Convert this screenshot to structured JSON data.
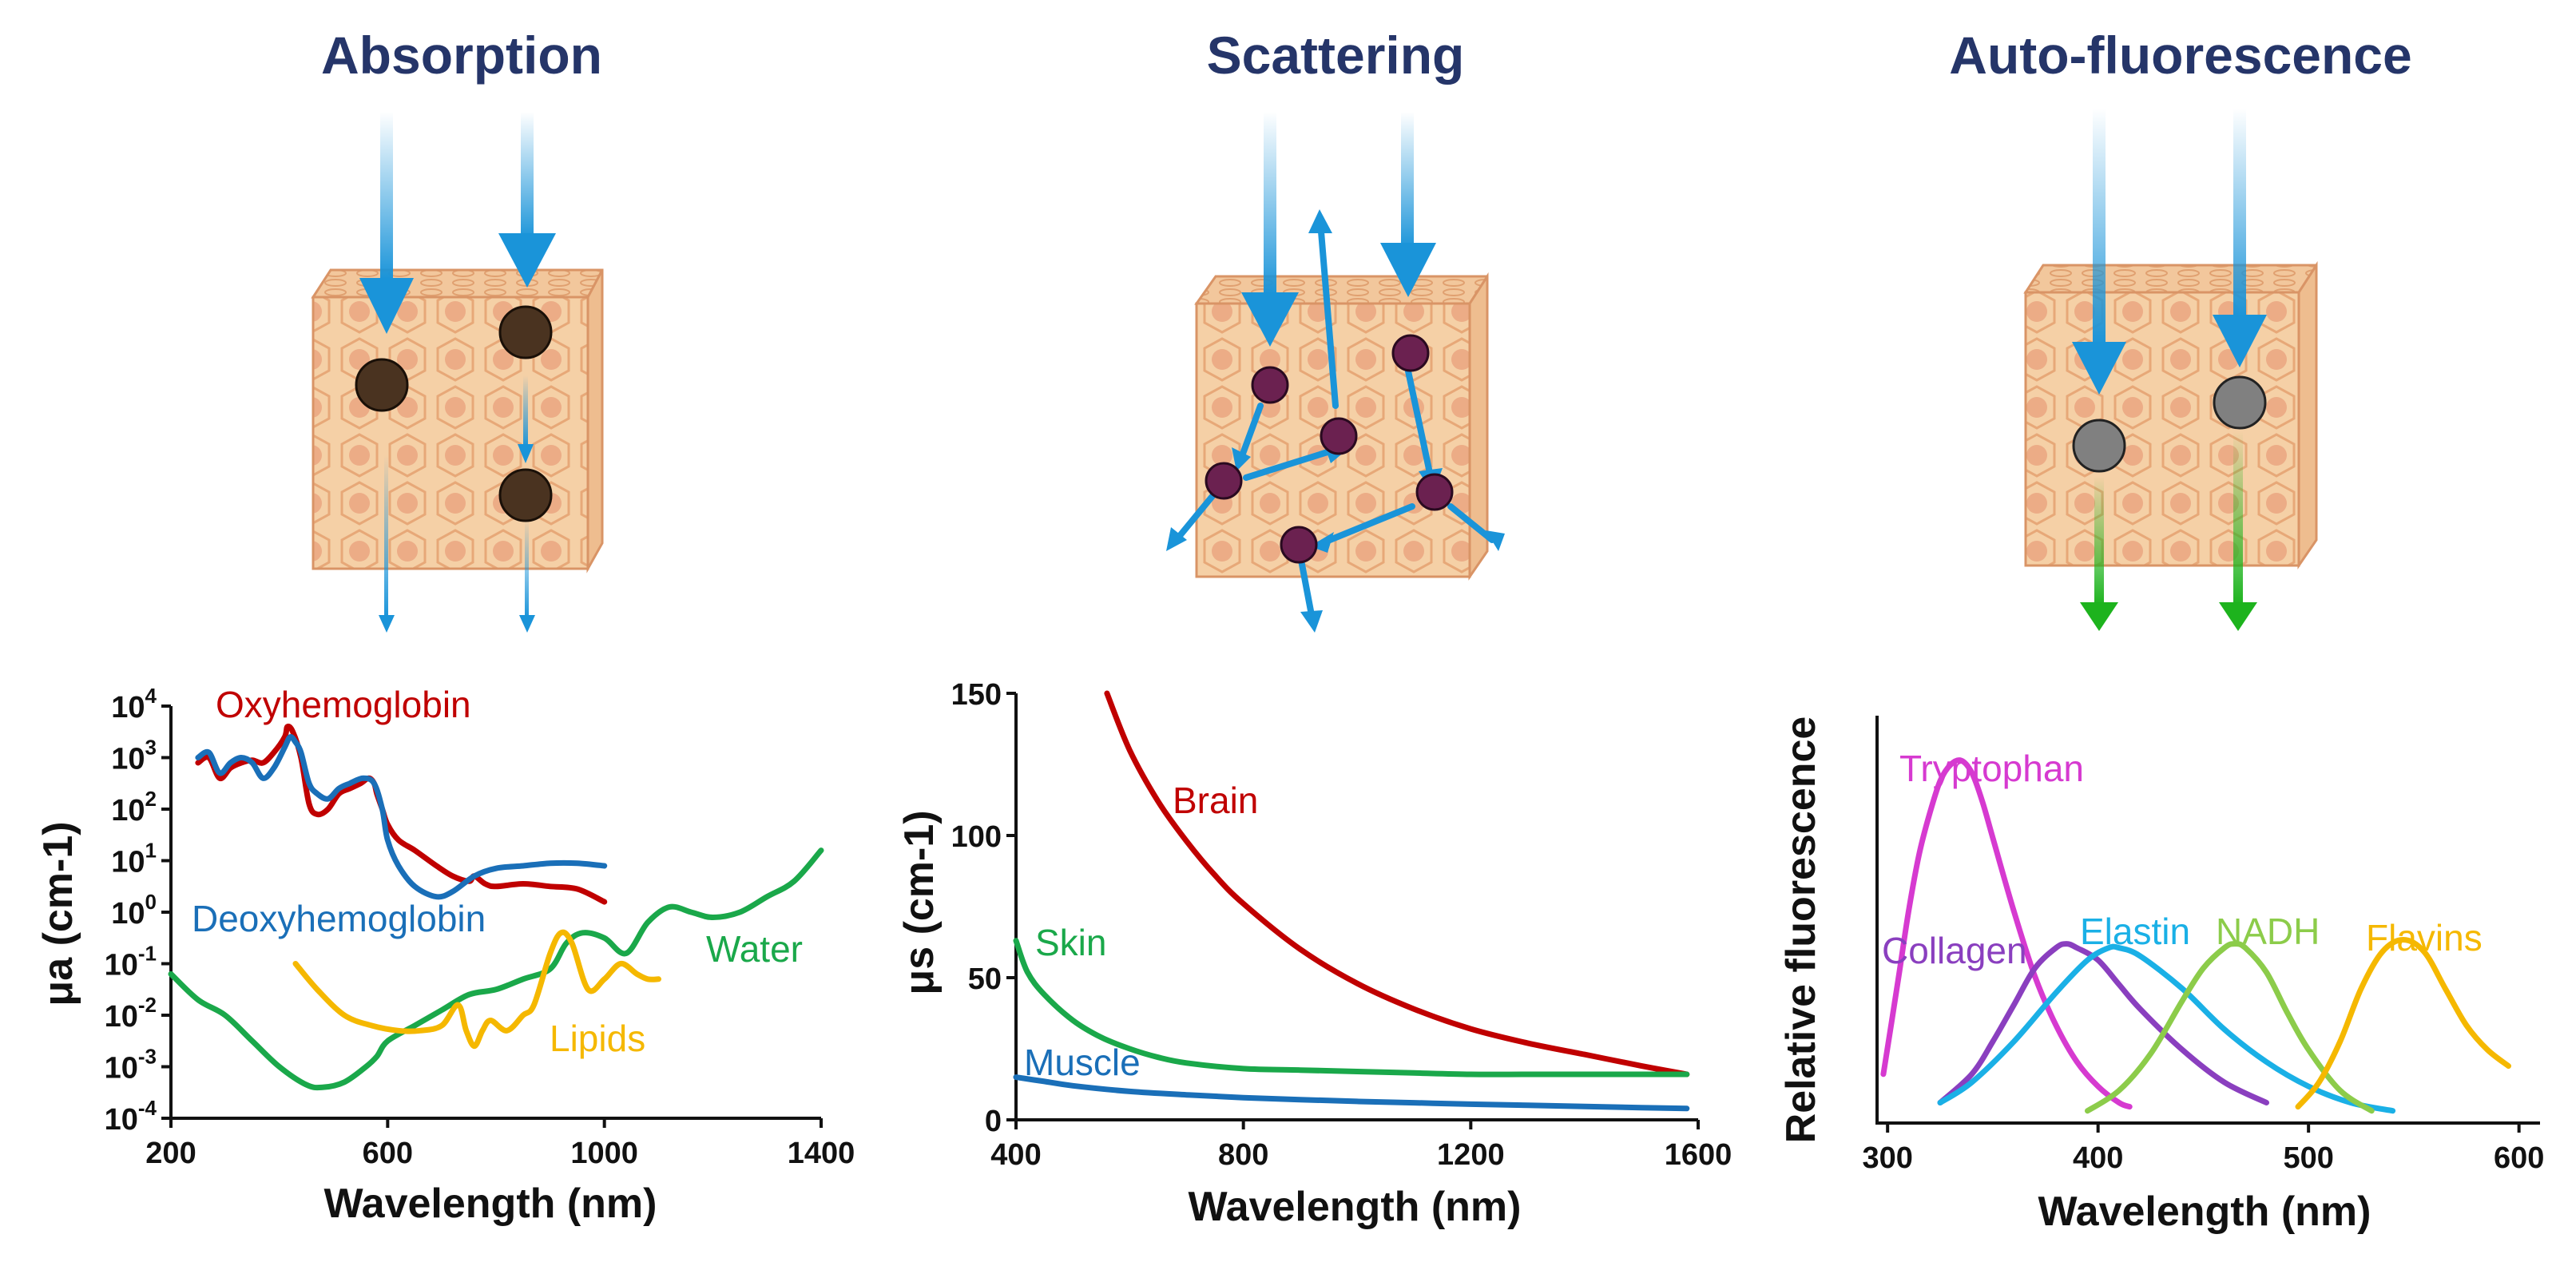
{
  "panels": {
    "absorption": {
      "title": "Absorption"
    },
    "scattering": {
      "title": "Scattering"
    },
    "autofluorescence": {
      "title": "Auto-fluorescence"
    }
  },
  "colors": {
    "title": "#253569",
    "arrow": "#1a94d9",
    "green_arrow": "#1db31d",
    "tissue_fill": "#f5d0a6",
    "tissue_line": "#d99466",
    "absorber": "#4a3320",
    "scatterer": "#6b2150",
    "fluorophore": "#808080"
  },
  "chart_data": [
    {
      "type": "line",
      "xlabel": "Wavelength (nm)",
      "ylabel": "μa (cm-1)",
      "xlim": [
        200,
        1400
      ],
      "xticks": [
        "200",
        "600",
        "1000",
        "1400"
      ],
      "yscale": "log",
      "ylim": [
        -4,
        4
      ],
      "ytick_base": "10",
      "ytick_exponents": [
        "4",
        "3",
        "2",
        "1",
        "0",
        "-1",
        "-2",
        "-3",
        "-4"
      ],
      "series": [
        {
          "name": "Oxyhemoglobin",
          "color": "#c00000",
          "x": [
            250,
            270,
            290,
            310,
            330,
            350,
            370,
            390,
            410,
            415,
            425,
            440,
            455,
            470,
            490,
            510,
            530,
            550,
            565,
            575,
            580,
            590,
            600,
            620,
            650,
            690,
            720,
            750,
            760,
            780,
            800,
            850,
            900,
            950,
            1000
          ],
          "y": [
            2.9,
            3.0,
            2.6,
            2.8,
            2.9,
            2.95,
            2.9,
            3.1,
            3.4,
            3.6,
            3.5,
            3.0,
            2.1,
            1.9,
            2.0,
            2.3,
            2.4,
            2.5,
            2.6,
            2.5,
            2.3,
            2.0,
            1.7,
            1.4,
            1.2,
            0.9,
            0.7,
            0.6,
            0.7,
            0.55,
            0.5,
            0.55,
            0.5,
            0.45,
            0.2
          ]
        },
        {
          "name": "Deoxyhemoglobin",
          "color": "#1a6fb8",
          "x": [
            250,
            270,
            290,
            310,
            330,
            350,
            370,
            390,
            410,
            420,
            430,
            440,
            455,
            470,
            490,
            510,
            530,
            555,
            575,
            590,
            600,
            620,
            650,
            690,
            720,
            760,
            800,
            850,
            900,
            950,
            1000
          ],
          "y": [
            3.0,
            3.1,
            2.7,
            2.9,
            3.0,
            2.9,
            2.6,
            2.8,
            3.2,
            3.4,
            3.3,
            3.1,
            2.5,
            2.3,
            2.2,
            2.4,
            2.5,
            2.6,
            2.5,
            2.0,
            1.4,
            0.9,
            0.5,
            0.3,
            0.4,
            0.7,
            0.85,
            0.9,
            0.95,
            0.95,
            0.9
          ]
        },
        {
          "name": "Water",
          "color": "#1aa84a",
          "x": [
            200,
            250,
            300,
            350,
            400,
            450,
            480,
            520,
            560,
            580,
            600,
            650,
            700,
            750,
            800,
            850,
            900,
            930,
            960,
            1000,
            1040,
            1080,
            1120,
            1160,
            1200,
            1250,
            1300,
            1350,
            1400
          ],
          "y": [
            -1.2,
            -1.7,
            -2.0,
            -2.5,
            -3.0,
            -3.35,
            -3.4,
            -3.3,
            -3.0,
            -2.8,
            -2.5,
            -2.2,
            -1.9,
            -1.6,
            -1.5,
            -1.3,
            -1.1,
            -0.6,
            -0.4,
            -0.5,
            -0.8,
            -0.2,
            0.1,
            0.0,
            -0.1,
            0.0,
            0.3,
            0.6,
            1.2
          ]
        },
        {
          "name": "Lipids",
          "color": "#f5b800",
          "x": [
            430,
            470,
            520,
            570,
            620,
            660,
            700,
            730,
            745,
            760,
            775,
            790,
            820,
            850,
            870,
            900,
            920,
            940,
            970,
            1000,
            1030,
            1060,
            1080,
            1100
          ],
          "y": [
            -1.0,
            -1.5,
            -2.0,
            -2.2,
            -2.3,
            -2.3,
            -2.2,
            -1.8,
            -2.3,
            -2.6,
            -2.3,
            -2.1,
            -2.3,
            -2.0,
            -1.8,
            -0.8,
            -0.4,
            -0.6,
            -1.5,
            -1.3,
            -1.0,
            -1.2,
            -1.3,
            -1.3
          ]
        }
      ]
    },
    {
      "type": "line",
      "xlabel": "Wavelength (nm)",
      "ylabel": "μs (cm-1)",
      "xlim": [
        400,
        1600
      ],
      "xticks": [
        "400",
        "800",
        "1200",
        "1600"
      ],
      "ylim": [
        0,
        150
      ],
      "yticks": [
        "0",
        "50",
        "100",
        "150"
      ],
      "series": [
        {
          "name": "Brain",
          "color": "#c00000",
          "x": [
            560,
            600,
            650,
            700,
            750,
            800,
            900,
            1000,
            1100,
            1200,
            1300,
            1400,
            1500,
            1580
          ],
          "y": [
            150,
            130,
            112,
            98,
            86,
            76,
            60,
            48,
            39,
            32,
            27,
            23,
            19,
            16
          ]
        },
        {
          "name": "Skin",
          "color": "#1aa84a",
          "x": [
            400,
            420,
            450,
            500,
            550,
            600,
            650,
            700,
            800,
            900,
            1000,
            1100,
            1200,
            1300,
            1400,
            1500,
            1580
          ],
          "y": [
            63,
            52,
            44,
            35,
            29,
            25,
            22,
            20,
            18,
            17.5,
            17,
            16.5,
            16,
            16,
            16,
            16,
            16
          ]
        },
        {
          "name": "Muscle",
          "color": "#1a6fb8",
          "x": [
            400,
            450,
            500,
            600,
            700,
            800,
            900,
            1000,
            1100,
            1200,
            1300,
            1400,
            1500,
            1580
          ],
          "y": [
            15,
            13.5,
            12,
            10,
            8.8,
            7.8,
            7.1,
            6.5,
            6,
            5.5,
            5.1,
            4.7,
            4.3,
            4
          ]
        }
      ]
    },
    {
      "type": "line",
      "xlabel": "Wavelength (nm)",
      "ylabel": "Relative fluorescence",
      "xlim": [
        295,
        610
      ],
      "xticks": [
        "300",
        "400",
        "500",
        "600"
      ],
      "ylim": [
        0,
        1
      ],
      "series": [
        {
          "name": "Tryptophan",
          "color": "#d63ad0",
          "x": [
            298,
            305,
            310,
            315,
            320,
            325,
            330,
            335,
            340,
            345,
            350,
            360,
            370,
            380,
            390,
            400,
            410,
            415
          ],
          "y": [
            0.12,
            0.35,
            0.52,
            0.66,
            0.76,
            0.84,
            0.88,
            0.89,
            0.86,
            0.79,
            0.7,
            0.52,
            0.36,
            0.24,
            0.15,
            0.09,
            0.05,
            0.04
          ]
        },
        {
          "name": "Collagen",
          "color": "#8a3fbf",
          "x": [
            325,
            340,
            350,
            360,
            370,
            380,
            385,
            390,
            400,
            410,
            420,
            440,
            460,
            480
          ],
          "y": [
            0.05,
            0.12,
            0.2,
            0.29,
            0.38,
            0.43,
            0.44,
            0.43,
            0.4,
            0.34,
            0.28,
            0.18,
            0.1,
            0.05
          ]
        },
        {
          "name": "Elastin",
          "color": "#1ab0e6",
          "x": [
            325,
            340,
            360,
            380,
            395,
            405,
            410,
            420,
            440,
            460,
            480,
            500,
            520,
            540
          ],
          "y": [
            0.05,
            0.1,
            0.2,
            0.32,
            0.4,
            0.43,
            0.43,
            0.41,
            0.33,
            0.23,
            0.15,
            0.09,
            0.05,
            0.03
          ]
        },
        {
          "name": "NADH",
          "color": "#8ccc4a",
          "x": [
            395,
            410,
            425,
            440,
            450,
            460,
            465,
            470,
            480,
            490,
            500,
            515,
            530
          ],
          "y": [
            0.03,
            0.08,
            0.17,
            0.3,
            0.38,
            0.43,
            0.44,
            0.43,
            0.37,
            0.27,
            0.18,
            0.08,
            0.03
          ]
        },
        {
          "name": "Flavins",
          "color": "#f5b800",
          "x": [
            495,
            505,
            515,
            525,
            535,
            545,
            555,
            565,
            575,
            585,
            595
          ],
          "y": [
            0.04,
            0.1,
            0.2,
            0.33,
            0.42,
            0.45,
            0.42,
            0.33,
            0.24,
            0.18,
            0.14
          ]
        }
      ]
    }
  ]
}
